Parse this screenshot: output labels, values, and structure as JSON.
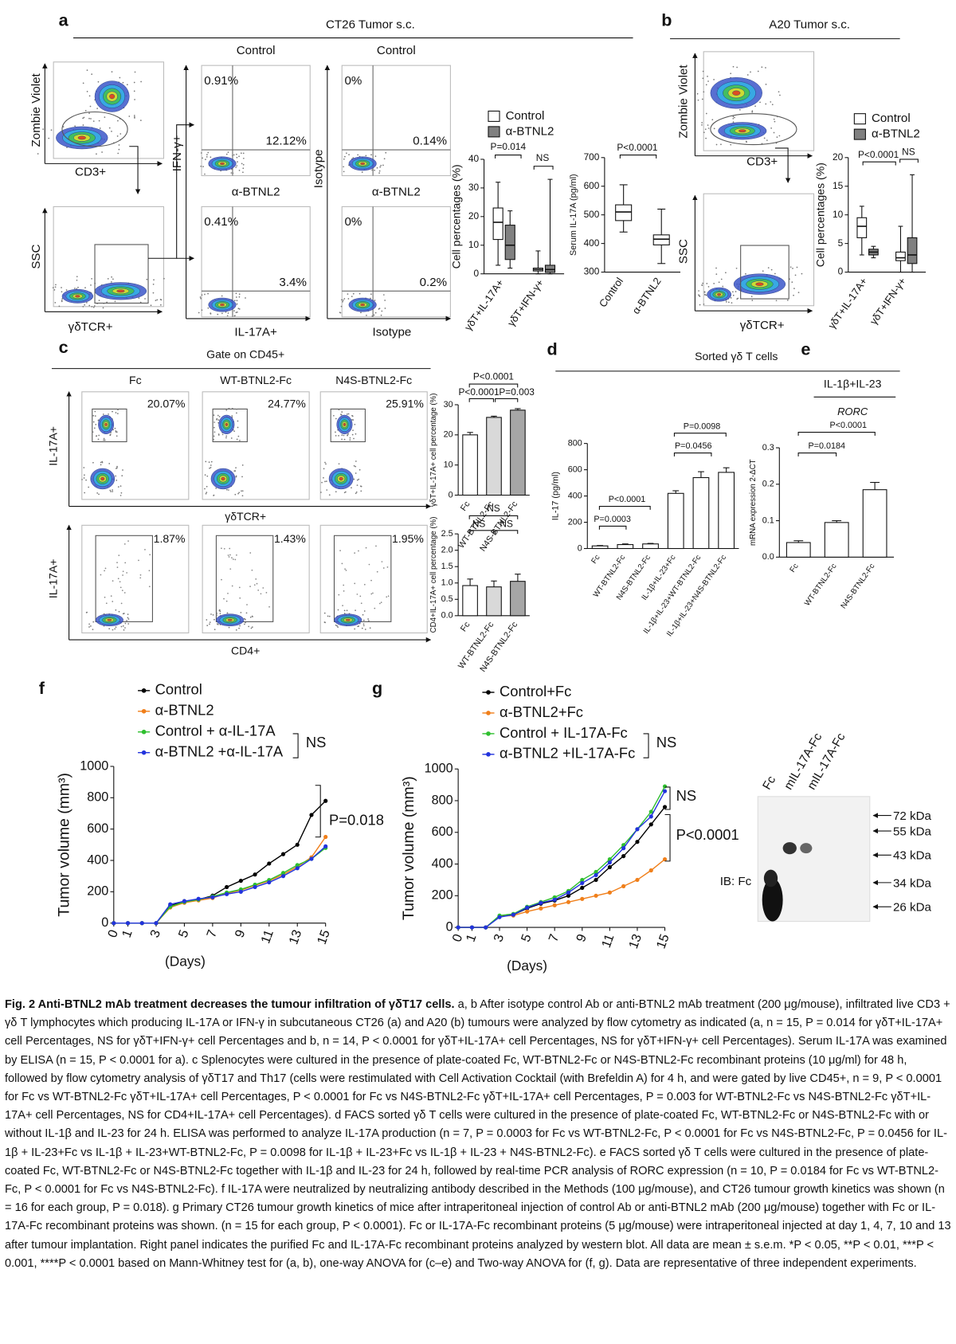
{
  "panel_labels": [
    "a",
    "b",
    "c",
    "d",
    "e",
    "f",
    "g"
  ],
  "a": {
    "header": "CT26 Tumor s.c.",
    "gating": {
      "y_labels": [
        "Zombie Violet",
        "SSC"
      ],
      "x_labels": [
        "CD3+",
        "γδTCR+"
      ]
    },
    "quadrant_plots": {
      "column_titles": [
        "Control",
        "Control"
      ],
      "y_labels": [
        "IFN-γ+",
        "Isotype"
      ],
      "row_labels": [
        "α-BTNL2",
        "α-BTNL2"
      ],
      "x_labels": [
        "IL-17A+",
        "Isotype"
      ],
      "percentages": [
        [
          "0.91%",
          "12.12%"
        ],
        [
          "0.41%",
          "3.4%"
        ],
        [
          "0%",
          "0.14%"
        ],
        [
          "0%",
          "0.2%"
        ]
      ]
    },
    "box_chart": {
      "type": "box",
      "ylabel": "Cell percentages (%)",
      "categories": [
        "γδT+IL-17A+",
        "γδT+IFN-γ+"
      ],
      "series": [
        {
          "name": "Control",
          "color": "#ffffff",
          "boxes": [
            {
              "min": 3,
              "q1": 12,
              "median": 18,
              "q3": 23,
              "max": 32
            },
            {
              "min": 0,
              "q1": 1,
              "median": 1.5,
              "q3": 2,
              "max": 8
            }
          ]
        },
        {
          "name": "α-BTNL2",
          "color": "#808080",
          "boxes": [
            {
              "min": 2,
              "q1": 5,
              "median": 10,
              "q3": 17,
              "max": 22
            },
            {
              "min": 0,
              "q1": 0.5,
              "median": 1.5,
              "q3": 3,
              "max": 33
            }
          ]
        }
      ],
      "ylim": [
        0,
        40
      ],
      "yticks": [
        0,
        10,
        20,
        30,
        40
      ],
      "annotations": [
        "P=0.014",
        "NS"
      ]
    },
    "serum_chart": {
      "type": "box",
      "ylabel": "Serum IL-17A (pg/ml)",
      "categories": [
        "Control",
        "α-BTNL2"
      ],
      "color": "#ffffff",
      "boxes": [
        {
          "min": 440,
          "q1": 480,
          "median": 510,
          "q3": 535,
          "max": 605
        },
        {
          "min": 330,
          "q1": 395,
          "median": 415,
          "q3": 430,
          "max": 520
        }
      ],
      "ylim": [
        300,
        700
      ],
      "yticks": [
        300,
        400,
        500,
        600,
        700
      ],
      "annotations": [
        "P<0.0001"
      ]
    }
  },
  "b": {
    "header": "A20 Tumor s.c.",
    "gating": {
      "y_labels": [
        "Zombie Violet",
        "SSC"
      ],
      "x_labels": [
        "CD3+",
        "γδTCR+"
      ]
    },
    "box_chart": {
      "type": "box",
      "ylabel": "Cell percentages (%)",
      "categories": [
        "γδT+IL-17A+",
        "γδT+IFN-γ+"
      ],
      "series": [
        {
          "name": "Control",
          "color": "#ffffff",
          "boxes": [
            {
              "min": 3,
              "q1": 6,
              "median": 8,
              "q3": 9.5,
              "max": 11.5
            },
            {
              "min": 0,
              "q1": 2,
              "median": 2.5,
              "q3": 3.5,
              "max": 8
            }
          ]
        },
        {
          "name": "α-BTNL2",
          "color": "#808080",
          "boxes": [
            {
              "min": 2.5,
              "q1": 3,
              "median": 3.5,
              "q3": 4,
              "max": 4.5
            },
            {
              "min": 0,
              "q1": 1.5,
              "median": 3,
              "q3": 6,
              "max": 17
            }
          ]
        }
      ],
      "ylim": [
        0,
        20
      ],
      "yticks": [
        0,
        5,
        10,
        15,
        20
      ],
      "annotations": [
        "P<0.0001",
        "NS"
      ]
    }
  },
  "c": {
    "header": "Gate on CD45+",
    "column_titles": [
      "Fc",
      "WT-BTNL2-Fc",
      "N4S-BTNL2-Fc"
    ],
    "gamma_delta_percentages": [
      "20.07%",
      "24.77%",
      "25.91%"
    ],
    "cd4_percentages": [
      "1.87%",
      "1.43%",
      "1.95%"
    ],
    "y_labels": [
      "IL-17A+",
      "IL-17A+"
    ],
    "x_labels": [
      "γδTCR+",
      "CD4+"
    ],
    "top_chart": {
      "type": "bar",
      "ylabel": "γδT+IL-17A+ cell percentage (%)",
      "categories": [
        "Fc",
        "WT-BTNL2-Fc",
        "N4S-BTNL2-Fc"
      ],
      "values": [
        20,
        25.8,
        28.2
      ],
      "errors": [
        0.8,
        0.4,
        0.5
      ],
      "colors": [
        "#ffffff",
        "#d9d9d9",
        "#a6a6a6"
      ],
      "ylim": [
        0,
        30
      ],
      "yticks": [
        0,
        10,
        20,
        30
      ],
      "annotations": [
        "P<0.0001",
        "P<0.0001",
        "P=0.003"
      ]
    },
    "bottom_chart": {
      "type": "bar",
      "ylabel": "CD4+IL-17A+ cell percentage (%)",
      "categories": [
        "Fc",
        "WT-BTNL2-Fc",
        "N4S-BTNL2-Fc"
      ],
      "values": [
        0.92,
        0.88,
        1.05
      ],
      "errors": [
        0.2,
        0.18,
        0.22
      ],
      "colors": [
        "#ffffff",
        "#d9d9d9",
        "#a6a6a6"
      ],
      "ylim": [
        0,
        2.5
      ],
      "yticks": [
        {
          "value": 0,
          "label": "0.0"
        },
        0.5,
        {
          "value": 1,
          "label": "1.0"
        },
        1.5,
        {
          "value": 2,
          "label": "2.0"
        },
        2.5
      ],
      "annotations": [
        "NS",
        "NS",
        "NS"
      ]
    }
  },
  "d": {
    "header": "Sorted γδ T cells",
    "chart": {
      "type": "bar",
      "ylabel": "IL-17 (pg/ml)",
      "categories": [
        "Fc",
        "WT-BTNL2-Fc",
        "N4S-BTNL2-Fc",
        "IL-1β+IL-23+Fc",
        "IL-1β+IL-23+WT-BTNL2-Fc",
        "IL-1β+IL-23+N4S-BTNL2-Fc"
      ],
      "values": [
        20,
        30,
        35,
        420,
        540,
        580
      ],
      "errors": [
        3,
        5,
        4,
        20,
        45,
        35
      ],
      "colors": [
        "#ffffff",
        "#ffffff",
        "#ffffff",
        "#ffffff",
        "#ffffff",
        "#ffffff"
      ],
      "ylim": [
        0,
        800
      ],
      "yticks": [
        0,
        200,
        400,
        600,
        800
      ],
      "annotations": [
        "P=0.0003",
        "P<0.0001",
        "P=0.0456",
        "P=0.0098"
      ]
    }
  },
  "e": {
    "header": "IL-1β+IL-23",
    "gene": "RORC",
    "chart": {
      "type": "bar",
      "ylabel": "mRNA expression 2-ΔCT",
      "categories": [
        "Fc",
        "WT-BTNL2-Fc",
        "N4S-BTNL2-Fc"
      ],
      "values": [
        0.04,
        0.095,
        0.185
      ],
      "errors": [
        0.005,
        0.005,
        0.02
      ],
      "colors": [
        "#ffffff",
        "#ffffff",
        "#ffffff"
      ],
      "ylim": [
        0,
        0.3
      ],
      "yticks": [
        {
          "value": 0,
          "label": "0.0"
        },
        0.1,
        0.2,
        0.3
      ],
      "annotations": [
        "P=0.0184",
        "P<0.0001"
      ]
    }
  },
  "f": {
    "chart": {
      "type": "line",
      "ylabel": "Tumor volume (mm³)",
      "xlabel": "(Days)",
      "x": [
        0,
        1,
        2,
        3,
        4,
        5,
        6,
        7,
        8,
        9,
        10,
        11,
        12,
        13,
        14,
        15
      ],
      "series": [
        {
          "name": "Control",
          "color": "#000000",
          "values": [
            0,
            0,
            0,
            0,
            110,
            140,
            150,
            175,
            230,
            270,
            310,
            380,
            440,
            500,
            690,
            780
          ]
        },
        {
          "name": "α-BTNL2",
          "color": "#f07f1a",
          "values": [
            0,
            0,
            0,
            0,
            100,
            130,
            145,
            160,
            190,
            210,
            240,
            270,
            310,
            360,
            420,
            550
          ]
        },
        {
          "name": "Control + α-IL-17A",
          "color": "#2fbf2f",
          "values": [
            0,
            0,
            0,
            0,
            105,
            135,
            150,
            170,
            195,
            215,
            245,
            275,
            320,
            370,
            410,
            480
          ]
        },
        {
          "name": "α-BTNL2 +α-IL-17A",
          "color": "#2233dd",
          "values": [
            0,
            0,
            0,
            0,
            120,
            140,
            155,
            165,
            185,
            200,
            230,
            260,
            300,
            350,
            410,
            490
          ]
        }
      ],
      "xlim": [
        0,
        15
      ],
      "xticks": [
        0,
        1,
        3,
        5,
        7,
        9,
        11,
        13,
        15
      ],
      "ylim": [
        0,
        1000
      ],
      "yticks": [
        0,
        200,
        400,
        600,
        800,
        1000
      ],
      "annotations": [
        "NS",
        "P=0.018"
      ]
    }
  },
  "g": {
    "chart": {
      "type": "line",
      "ylabel": "Tumor volume (mm³)",
      "xlabel": "(Days)",
      "x": [
        0,
        1,
        2,
        3,
        4,
        5,
        6,
        7,
        8,
        9,
        10,
        11,
        12,
        13,
        14,
        15
      ],
      "series": [
        {
          "name": "Control+Fc",
          "color": "#000000",
          "values": [
            0,
            0,
            0,
            70,
            80,
            120,
            150,
            170,
            200,
            250,
            300,
            380,
            450,
            540,
            650,
            760
          ]
        },
        {
          "name": "α-BTNL2+Fc",
          "color": "#f07f1a",
          "values": [
            0,
            0,
            0,
            70,
            75,
            100,
            120,
            140,
            160,
            180,
            200,
            220,
            260,
            300,
            360,
            430
          ]
        },
        {
          "name": "Control + IL-17A-Fc",
          "color": "#2fbf2f",
          "values": [
            0,
            0,
            0,
            75,
            85,
            130,
            160,
            190,
            230,
            300,
            350,
            430,
            520,
            620,
            730,
            890
          ]
        },
        {
          "name": "α-BTNL2 +IL-17A-Fc",
          "color": "#2233dd",
          "values": [
            0,
            0,
            0,
            65,
            80,
            125,
            155,
            175,
            220,
            280,
            330,
            410,
            500,
            620,
            700,
            860
          ]
        }
      ],
      "xlim": [
        0,
        15
      ],
      "xticks": [
        0,
        1,
        3,
        5,
        7,
        9,
        11,
        13,
        15
      ],
      "ylim": [
        0,
        1000
      ],
      "yticks": [
        0,
        200,
        400,
        600,
        800,
        1000
      ],
      "annotations": [
        "NS",
        "NS",
        "P<0.0001"
      ]
    },
    "blot": {
      "lanes": [
        "Fc",
        "mIL-17A-Fc",
        "mIL-17A-Fc"
      ],
      "markers": [
        "72 kDa",
        "55 kDa",
        "43 kDa",
        "34 kDa",
        "26 kDa"
      ],
      "probe": "IB: Fc"
    }
  },
  "caption": {
    "title": "Fig. 2 Anti-BTNL2 mAb treatment decreases the tumour infiltration of γδT17 cells.",
    "body": "a, b After isotype control Ab or anti-BTNL2 mAb treatment (200 μg/mouse), infiltrated live CD3 + γδ T lymphocytes which producing IL-17A or IFN-γ in subcutaneous CT26 (a) and A20 (b) tumours were analyzed by flow cytometry as indicated (a, n = 15, P = 0.014 for γδT+IL-17A+ cell Percentages, NS for γδT+IFN-γ+ cell Percentages and b, n = 14, P < 0.0001 for γδT+IL-17A+ cell Percentages, NS for γδT+IFN-γ+ cell Percentages). Serum IL-17A was examined by ELISA (n = 15, P < 0.0001 for a). c Splenocytes were cultured in the presence of plate-coated Fc, WT-BTNL2-Fc or N4S-BTNL2-Fc recombinant proteins (10 μg/ml) for 48 h, followed by flow cytometry analysis of γδT17 and Th17 (cells were restimulated with Cell Activation Cocktail (with Brefeldin A) for 4 h, and were gated by live CD45+, n = 9, P < 0.0001 for Fc vs WT-BTNL2-Fc γδT+IL-17A+ cell Percentages, P < 0.0001 for Fc vs N4S-BTNL2-Fc γδT+IL-17A+ cell Percentages, P = 0.003 for WT-BTNL2-Fc vs N4S-BTNL2-Fc γδT+IL-17A+ cell Percentages, NS for CD4+IL-17A+ cell Percentages). d FACS sorted γδ T cells were cultured in the presence of plate-coated Fc, WT-BTNL2-Fc or N4S-BTNL2-Fc with or without IL-1β and IL-23 for 24 h. ELISA was performed to analyze IL-17A production (n = 7, P = 0.0003 for Fc vs WT-BTNL2-Fc, P < 0.0001 for Fc vs N4S-BTNL2-Fc, P = 0.0456 for IL-1β + IL-23+Fc vs IL-1β + IL-23+WT-BTNL2-Fc, P = 0.0098 for IL-1β + IL-23+Fc vs IL-1β + IL-23 + N4S-BTNL2-Fc). e FACS sorted γδ T cells were cultured in the presence of plate-coated Fc, WT-BTNL2-Fc or N4S-BTNL2-Fc together with IL-1β and IL-23 for 24 h, followed by real-time PCR analysis of RORC expression (n = 10, P = 0.0184 for Fc vs WT-BTNL2-Fc, P < 0.0001 for Fc vs N4S-BTNL2-Fc). f IL-17A were neutralized by neutralizing antibody described in the Methods (100 μg/mouse), and CT26 tumour growth kinetics was shown (n = 16 for each group, P = 0.018). g Primary CT26 tumour growth kinetics of mice after intraperitoneal injection of control Ab or anti-BTNL2 mAb (200 μg/mouse) together with Fc or IL-17A-Fc recombinant proteins was shown. (n = 15 for each group, P < 0.0001). Fc or IL-17A-Fc recombinant proteins (5 μg/mouse) were intraperitoneal injected at day 1, 4, 7, 10 and 13 after tumour implantation. Right panel indicates the purified Fc and IL-17A-Fc recombinant proteins analyzed by western blot. All data are mean ± s.e.m. *P < 0.05, **P < 0.01, ***P < 0.001, ****P < 0.0001 based on Mann-Whitney test for (a, b), one-way ANOVA for (c–e) and Two-way ANOVA for (f, g). Data are representative of three independent experiments."
  }
}
